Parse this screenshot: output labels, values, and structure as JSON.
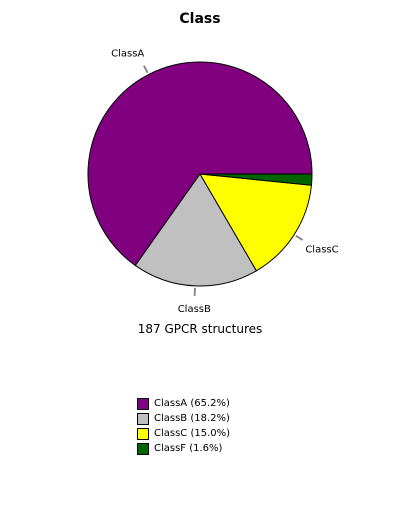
{
  "chart_data": {
    "type": "pie",
    "title": "Class",
    "caption": "187 GPCR structures",
    "slices": [
      {
        "name": "ClassA",
        "value": 65.2,
        "color": "#800080",
        "legend": "ClassA (65.2%)"
      },
      {
        "name": "ClassB",
        "value": 18.2,
        "color": "#c0c0c0",
        "legend": "ClassB (18.2%)"
      },
      {
        "name": "ClassC",
        "value": 15.0,
        "color": "#ffff00",
        "legend": "ClassC (15.0%)"
      },
      {
        "name": "ClassF",
        "value": 1.6,
        "color": "#006400",
        "legend": "ClassF (1.6%)"
      }
    ],
    "pie_labels": [
      "ClassA",
      "ClassB",
      "ClassC"
    ],
    "legend_position": "bottom"
  }
}
